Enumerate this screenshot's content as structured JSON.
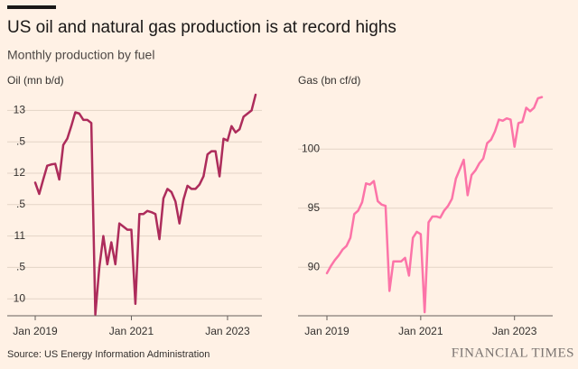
{
  "title": "US oil and natural gas production is at record highs",
  "subtitle": "Monthly production by fuel",
  "source": "Source: US Energy Information Administration",
  "brand": "FINANCIAL TIMES",
  "chart_data": [
    {
      "type": "line",
      "y_label": "Oil (mn b/d)",
      "color": "#ad2c5b",
      "grid": true,
      "x": [
        "2019-01",
        "2019-02",
        "2019-03",
        "2019-04",
        "2019-05",
        "2019-06",
        "2019-07",
        "2019-08",
        "2019-09",
        "2019-10",
        "2019-11",
        "2019-12",
        "2020-01",
        "2020-02",
        "2020-03",
        "2020-04",
        "2020-05",
        "2020-06",
        "2020-07",
        "2020-08",
        "2020-09",
        "2020-10",
        "2020-11",
        "2020-12",
        "2021-01",
        "2021-02",
        "2021-03",
        "2021-04",
        "2021-05",
        "2021-06",
        "2021-07",
        "2021-08",
        "2021-09",
        "2021-10",
        "2021-11",
        "2021-12",
        "2022-01",
        "2022-02",
        "2022-03",
        "2022-04",
        "2022-05",
        "2022-06",
        "2022-07",
        "2022-08",
        "2022-09",
        "2022-10",
        "2022-11",
        "2022-12",
        "2023-01",
        "2023-02",
        "2023-03",
        "2023-04",
        "2023-05",
        "2023-06",
        "2023-07",
        "2023-08"
      ],
      "values": [
        11.85,
        11.67,
        11.9,
        12.12,
        12.14,
        12.15,
        11.9,
        12.45,
        12.55,
        12.75,
        12.97,
        12.95,
        12.85,
        12.85,
        12.8,
        9.75,
        10.5,
        11.0,
        10.55,
        10.9,
        10.55,
        11.2,
        11.15,
        11.1,
        11.1,
        9.92,
        11.35,
        11.35,
        11.4,
        11.38,
        11.35,
        10.95,
        11.6,
        11.75,
        11.7,
        11.55,
        11.2,
        11.58,
        11.8,
        11.75,
        11.75,
        11.82,
        11.95,
        12.3,
        12.35,
        12.35,
        11.95,
        12.55,
        12.52,
        12.75,
        12.65,
        12.7,
        12.9,
        12.95,
        13.0,
        13.25
      ],
      "ylim": [
        9.73,
        13.25
      ],
      "yticks": [
        10,
        {
          "value": 10.5,
          "label": ".5"
        },
        11,
        {
          "value": 11.5,
          "label": ".5"
        },
        12,
        {
          "value": 12.5,
          "label": ".5"
        },
        13
      ],
      "xticks": [
        {
          "value": "2019-01",
          "label": "Jan 2019"
        },
        {
          "value": "2021-01",
          "label": "Jan 2021"
        },
        {
          "value": "2023-01",
          "label": "Jan 2023"
        }
      ]
    },
    {
      "type": "line",
      "y_label": "Gas (bn cf/d)",
      "color": "#fc74a8",
      "grid": true,
      "x": [
        "2019-01",
        "2019-02",
        "2019-03",
        "2019-04",
        "2019-05",
        "2019-06",
        "2019-07",
        "2019-08",
        "2019-09",
        "2019-10",
        "2019-11",
        "2019-12",
        "2020-01",
        "2020-02",
        "2020-03",
        "2020-04",
        "2020-05",
        "2020-06",
        "2020-07",
        "2020-08",
        "2020-09",
        "2020-10",
        "2020-11",
        "2020-12",
        "2021-01",
        "2021-02",
        "2021-03",
        "2021-04",
        "2021-05",
        "2021-06",
        "2021-07",
        "2021-08",
        "2021-09",
        "2021-10",
        "2021-11",
        "2021-12",
        "2022-01",
        "2022-02",
        "2022-03",
        "2022-04",
        "2022-05",
        "2022-06",
        "2022-07",
        "2022-08",
        "2022-09",
        "2022-10",
        "2022-11",
        "2022-12",
        "2023-01",
        "2023-02",
        "2023-03",
        "2023-04",
        "2023-05",
        "2023-06",
        "2023-07",
        "2023-08"
      ],
      "values": [
        89.5,
        90.1,
        90.6,
        91.0,
        91.5,
        91.8,
        92.5,
        94.5,
        94.8,
        95.5,
        97.1,
        97.0,
        97.3,
        95.6,
        95.3,
        95.2,
        88.0,
        90.5,
        90.5,
        90.5,
        90.8,
        89.3,
        92.5,
        93.0,
        92.8,
        86.2,
        93.8,
        94.3,
        94.3,
        94.2,
        94.8,
        95.2,
        95.8,
        97.5,
        98.3,
        99.1,
        96.1,
        97.8,
        98.2,
        98.8,
        99.2,
        100.5,
        100.8,
        101.5,
        102.5,
        102.4,
        102.6,
        102.5,
        100.2,
        102.2,
        102.3,
        103.5,
        103.2,
        103.5,
        104.3,
        104.4
      ],
      "ylim": [
        85.9,
        104.6
      ],
      "yticks": [
        90,
        95,
        100
      ],
      "xticks": [
        {
          "value": "2019-01",
          "label": "Jan 2019"
        },
        {
          "value": "2021-01",
          "label": "Jan 2021"
        },
        {
          "value": "2023-01",
          "label": "Jan 2023"
        }
      ]
    }
  ]
}
